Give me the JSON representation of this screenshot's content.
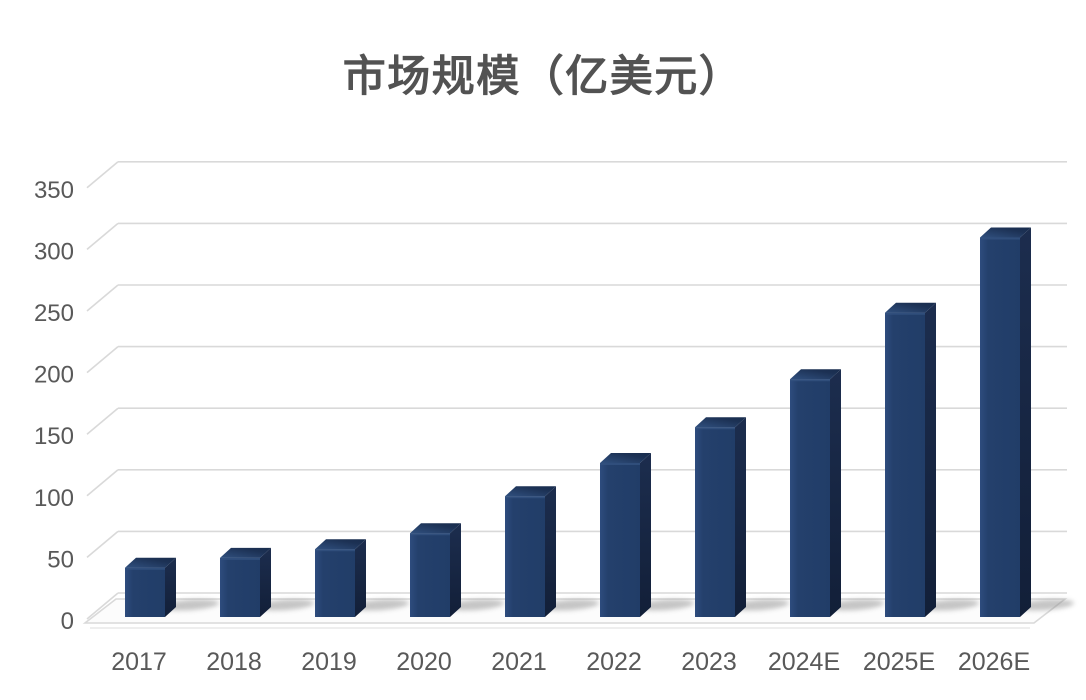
{
  "title": "市场规模（亿美元）",
  "colors": {
    "background": "#FFFFFF",
    "title_text": "#525252",
    "tick_text": "#595959",
    "gridline": "#D9D9D9",
    "bar_front": "#24406C",
    "bar_front_light": "#2E4C7E",
    "bar_side": "#15243F",
    "bar_top": "#1C3154",
    "bar_top_light": "#30507F",
    "shadow": "#8F8F8F"
  },
  "chart_data": {
    "type": "bar",
    "style": "3d-column",
    "title": "市场规模（亿美元）",
    "categories": [
      "2017",
      "2018",
      "2019",
      "2020",
      "2021",
      "2022",
      "2023",
      "2024E",
      "2025E",
      "2026E"
    ],
    "values": [
      40,
      48,
      55,
      68,
      98,
      125,
      154,
      193,
      247,
      308
    ],
    "series": [
      {
        "name": "市场规模",
        "values": [
          40,
          48,
          55,
          68,
          98,
          125,
          154,
          193,
          247,
          308
        ]
      }
    ],
    "xlabel": "",
    "ylabel": "",
    "ylim": [
      0,
      350
    ],
    "yticks": [
      0,
      50,
      100,
      150,
      200,
      250,
      300,
      350
    ],
    "grid": true,
    "legend": false
  }
}
